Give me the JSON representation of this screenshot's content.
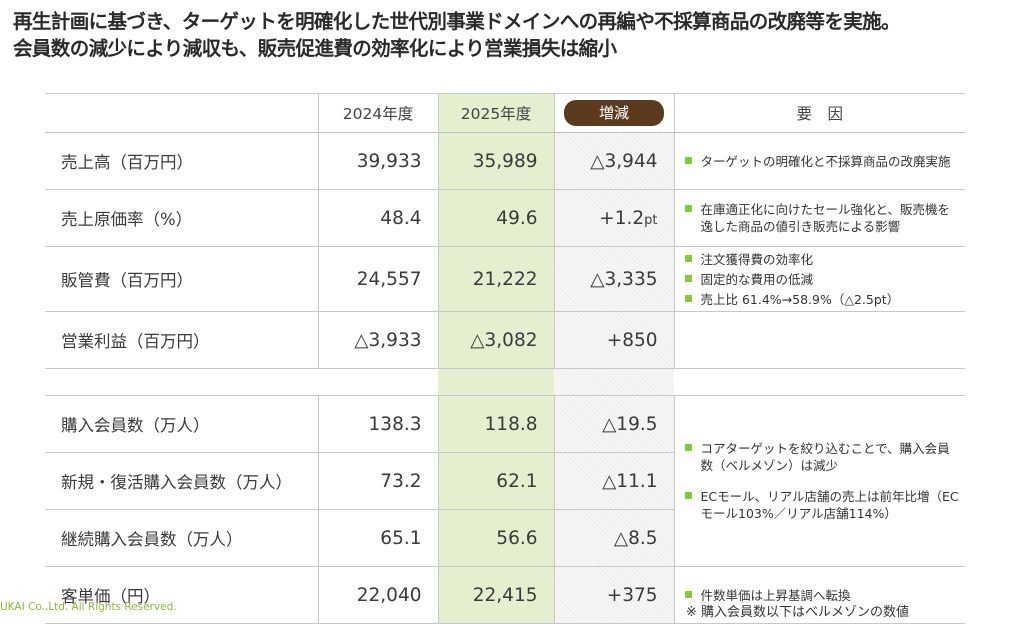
{
  "headline": {
    "line1": "再生計画に基づき、ターゲットを明確化した世代別事業ドメインへの再編や不採算商品の改廃等を実施。",
    "line2": "会員数の減少により減収も、販売促進費の効率化により営業損失は縮小"
  },
  "table": {
    "headers": {
      "y2024": "2024年度",
      "y2025": "2025年度",
      "diff": "増減",
      "factor": "要　因"
    },
    "group1": [
      {
        "label": "売上高（百万円）",
        "v2024": "39,933",
        "v2025": "35,989",
        "diff": "△3,944",
        "diff_unit": "",
        "factors": [
          "ターゲットの明確化と不採算商品の改廃実施"
        ]
      },
      {
        "label": "売上原価率（%）",
        "v2024": "48.4",
        "v2025": "49.6",
        "diff": "+1.2",
        "diff_unit": "pt",
        "factors": [
          "在庫適正化に向けたセール強化と、販売機を逸した商品の値引き販売による影響"
        ]
      },
      {
        "label": "販管費（百万円）",
        "v2024": "24,557",
        "v2025": "21,222",
        "diff": "△3,335",
        "diff_unit": "",
        "factors": [
          "注文獲得費の効率化",
          "固定的な費用の低減",
          "売上比 61.4%→58.9%（△2.5pt）"
        ]
      },
      {
        "label": "営業利益（百万円）",
        "v2024": "△3,933",
        "v2025": "△3,082",
        "diff": "+850",
        "diff_unit": "",
        "factors": []
      }
    ],
    "group2": [
      {
        "label": "購入会員数（万人）",
        "v2024": "138.3",
        "v2025": "118.8",
        "diff": "△19.5"
      },
      {
        "label": "新規・復活購入会員数（万人）",
        "v2024": "73.2",
        "v2025": "62.1",
        "diff": "△11.1"
      },
      {
        "label": "継続購入会員数（万人）",
        "v2024": "65.1",
        "v2025": "56.6",
        "diff": "△8.5"
      },
      {
        "label": "客単価（円）",
        "v2024": "22,040",
        "v2025": "22,415",
        "diff": "+375"
      }
    ],
    "group2_factors": {
      "members": [
        "コアターゲットを絞り込むことで、購入会員数（ベルメゾン）は減少",
        "ECモール、リアル店舗の売上は前年比増（ECモール103%／リアル店舗114%）"
      ],
      "unit_price": [
        "件数単価は上昇基調へ転換"
      ]
    }
  },
  "footer": {
    "copyright": "UKAI Co.,Ltd. All Rights Reserved.",
    "note": "※ 購入会員数以下はベルメゾンの数値"
  },
  "colors": {
    "highlight_2025": "#e3efcf",
    "pill": "#5c3a1e",
    "bullet": "#8cc63f"
  }
}
